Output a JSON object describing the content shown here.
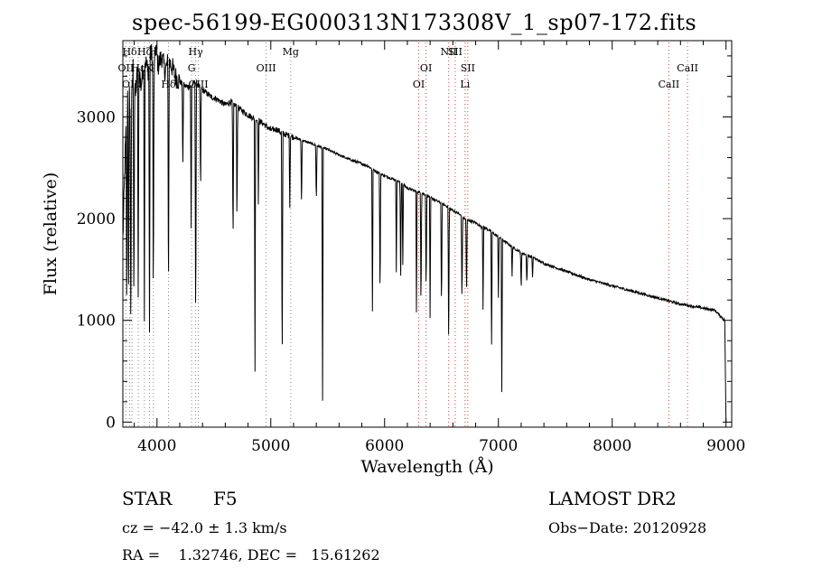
{
  "chart_data": {
    "type": "line",
    "title": "spec-56199-EG000313N173308V_1_sp07-172.fits",
    "xlabel": "Wavelength (Å)",
    "ylabel": "Flux (relative)",
    "xlim": [
      3700,
      9050
    ],
    "ylim": [
      -50,
      3750
    ],
    "xticks": [
      4000,
      5000,
      6000,
      7000,
      8000,
      9000
    ],
    "yticks": [
      0,
      1000,
      2000,
      3000
    ],
    "grid": false,
    "series": [
      {
        "line_color": "#000000",
        "x": [
          3700,
          3720,
          3735,
          3750,
          3770,
          3790,
          3810,
          3835,
          3860,
          3889,
          3920,
          3950,
          3970,
          3990,
          4010,
          4040,
          4070,
          4101,
          4130,
          4160,
          4200,
          4250,
          4300,
          4340,
          4380,
          4420,
          4470,
          4520,
          4560,
          4600,
          4650,
          4700,
          4750,
          4800,
          4861,
          4900,
          4950,
          5000,
          5050,
          5100,
          5150,
          5200,
          5250,
          5300,
          5350,
          5400,
          5450,
          5500,
          5550,
          5600,
          5650,
          5700,
          5750,
          5800,
          5850,
          5900,
          5950,
          6000,
          6050,
          6100,
          6150,
          6200,
          6250,
          6300,
          6350,
          6400,
          6450,
          6500,
          6550,
          6600,
          6650,
          6700,
          6750,
          6800,
          6850,
          6900,
          6950,
          7000,
          7050,
          7100,
          7150,
          7200,
          7250,
          7300,
          7350,
          7400,
          7500,
          7600,
          7700,
          7800,
          7900,
          8000,
          8100,
          8200,
          8300,
          8400,
          8500,
          8600,
          8700,
          8800,
          8900,
          8990
        ],
        "y": [
          1800,
          2600,
          3100,
          3400,
          2900,
          3500,
          3200,
          3550,
          3300,
          3600,
          3450,
          3650,
          3400,
          3700,
          3500,
          3600,
          3450,
          3550,
          3500,
          3400,
          3350,
          3300,
          3300,
          3350,
          3280,
          3250,
          3200,
          3180,
          3150,
          3120,
          3150,
          3100,
          3060,
          3020,
          2980,
          2960,
          2920,
          2870,
          2880,
          2840,
          2820,
          2800,
          2780,
          2760,
          2740,
          2720,
          2700,
          2680,
          2650,
          2630,
          2600,
          2580,
          2560,
          2540,
          2520,
          2480,
          2450,
          2420,
          2400,
          2380,
          2350,
          2300,
          2280,
          2260,
          2240,
          2210,
          2180,
          2150,
          2120,
          2080,
          2050,
          2000,
          1980,
          1960,
          1920,
          1900,
          1860,
          1820,
          1780,
          1740,
          1700,
          1670,
          1640,
          1620,
          1590,
          1560,
          1520,
          1480,
          1440,
          1400,
          1370,
          1340,
          1310,
          1280,
          1250,
          1220,
          1190,
          1160,
          1140,
          1120,
          1100,
          1000
        ]
      }
    ],
    "absorption_lines": [
      {
        "x": 3734,
        "depth": 2100
      },
      {
        "x": 3750,
        "depth": 2500
      },
      {
        "x": 3770,
        "depth": 2200
      },
      {
        "x": 3797,
        "depth": 2400
      },
      {
        "x": 3835,
        "depth": 2400
      },
      {
        "x": 3889,
        "depth": 2500
      },
      {
        "x": 3934,
        "depth": 2700
      },
      {
        "x": 3968,
        "depth": 2400
      },
      {
        "x": 4101,
        "depth": 2500
      },
      {
        "x": 4227,
        "depth": 900
      },
      {
        "x": 4300,
        "depth": 1400
      },
      {
        "x": 4340,
        "depth": 2600
      },
      {
        "x": 4383,
        "depth": 1100
      },
      {
        "x": 4668,
        "depth": 1500
      },
      {
        "x": 4703,
        "depth": 1200
      },
      {
        "x": 4861,
        "depth": 2500
      },
      {
        "x": 4891,
        "depth": 800
      },
      {
        "x": 5100,
        "depth": 2500
      },
      {
        "x": 5167,
        "depth": 700
      },
      {
        "x": 5270,
        "depth": 700
      },
      {
        "x": 5400,
        "depth": 600
      },
      {
        "x": 5455,
        "depth": 2500
      },
      {
        "x": 5893,
        "depth": 1400
      },
      {
        "x": 5960,
        "depth": 1300
      },
      {
        "x": 6103,
        "depth": 900
      },
      {
        "x": 6141,
        "depth": 1100
      },
      {
        "x": 6160,
        "depth": 800
      },
      {
        "x": 6280,
        "depth": 1200
      },
      {
        "x": 6320,
        "depth": 1200
      },
      {
        "x": 6365,
        "depth": 1000
      },
      {
        "x": 6400,
        "depth": 1200
      },
      {
        "x": 6500,
        "depth": 1100
      },
      {
        "x": 6563,
        "depth": 1500
      },
      {
        "x": 6680,
        "depth": 900
      },
      {
        "x": 6720,
        "depth": 800
      },
      {
        "x": 6865,
        "depth": 800
      },
      {
        "x": 6940,
        "depth": 1100
      },
      {
        "x": 7000,
        "depth": 600
      },
      {
        "x": 7030,
        "depth": 1500
      },
      {
        "x": 7120,
        "depth": 300
      },
      {
        "x": 7200,
        "depth": 400
      },
      {
        "x": 7250,
        "depth": 300
      },
      {
        "x": 7300,
        "depth": 200
      }
    ],
    "reference_lines": [
      {
        "x": 3727,
        "label": "OII",
        "row": 1,
        "color": "#888888"
      },
      {
        "x": 3760,
        "label": "Hδ",
        "row": 0,
        "color": "#888888"
      },
      {
        "x": 3780,
        "label": "OIII",
        "row": 2,
        "color": "#888888"
      },
      {
        "x": 3835,
        "label": "Hε",
        "row": 1,
        "color": "#888888"
      },
      {
        "x": 3889,
        "label": "Hζ",
        "row": 0,
        "color": "#888888"
      },
      {
        "x": 3934,
        "label": "K",
        "row": 1,
        "color": "#888888"
      },
      {
        "x": 3968,
        "label": "H",
        "row": 0,
        "color": "#888888"
      },
      {
        "x": 4101,
        "label": "Hδ",
        "row": 2,
        "color": "#888888"
      },
      {
        "x": 4304,
        "label": "G",
        "row": 1,
        "color": "#888888"
      },
      {
        "x": 4340,
        "label": "Hγ",
        "row": 0,
        "color": "#888888"
      },
      {
        "x": 4363,
        "label": "OIII",
        "row": 2,
        "color": "#888888"
      },
      {
        "x": 4959,
        "label": "OIII",
        "row": 1,
        "color": "#888888"
      },
      {
        "x": 5175,
        "label": "Mg",
        "row": 0,
        "color": "#888888"
      },
      {
        "x": 6300,
        "label": "OI",
        "row": 2,
        "color": "#cc4444"
      },
      {
        "x": 6364,
        "label": "OI",
        "row": 1,
        "color": "#cc4444"
      },
      {
        "x": 6563,
        "label": "NII",
        "row": 0,
        "color": "#cc4444"
      },
      {
        "x": 6620,
        "label": "SII",
        "row": 0,
        "color": "#cc4444"
      },
      {
        "x": 6707,
        "label": "Li",
        "row": 2,
        "color": "#cc4444"
      },
      {
        "x": 6731,
        "label": "SII",
        "row": 1,
        "color": "#cc4444"
      },
      {
        "x": 8498,
        "label": "CaII",
        "row": 2,
        "color": "#cc4444"
      },
      {
        "x": 8662,
        "label": "CaII",
        "row": 1,
        "color": "#cc4444"
      }
    ]
  },
  "info": {
    "object_class": "STAR",
    "subclass": "F5",
    "survey": "LAMOST DR2",
    "redshift": "cz = −42.0 ± 1.3 km/s",
    "obs_date": "Obs−Date: 20120928",
    "coords": "RA =    1.32746, DEC =   15.61262"
  }
}
